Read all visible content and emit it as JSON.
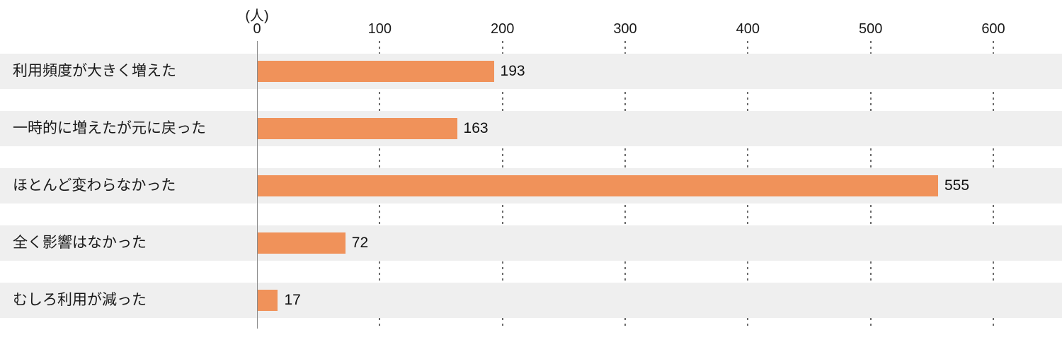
{
  "chart_data": {
    "type": "bar",
    "orientation": "horizontal",
    "title": "",
    "unit_label": "(人)",
    "categories": [
      "利用頻度が大きく増えた",
      "一時的に増えたが元に戻った",
      "ほとんど変わらなかった",
      "全く影響はなかった",
      "むしろ利用が減った"
    ],
    "values": [
      193,
      163,
      555,
      72,
      17
    ],
    "value_labels": [
      "193",
      "163",
      "555",
      "72",
      "17"
    ],
    "xlim": [
      0,
      600
    ],
    "x_ticks": [
      0,
      100,
      200,
      300,
      400,
      500,
      600
    ],
    "grid": "dotted-vertical-at-ticks",
    "legend": "none",
    "colors": {
      "bar": "#F0925A",
      "band": "#EFEFEF",
      "axis_line": "#8A8A8A",
      "gridline": "#6B6B6B",
      "text": "#1A1A1A"
    }
  }
}
